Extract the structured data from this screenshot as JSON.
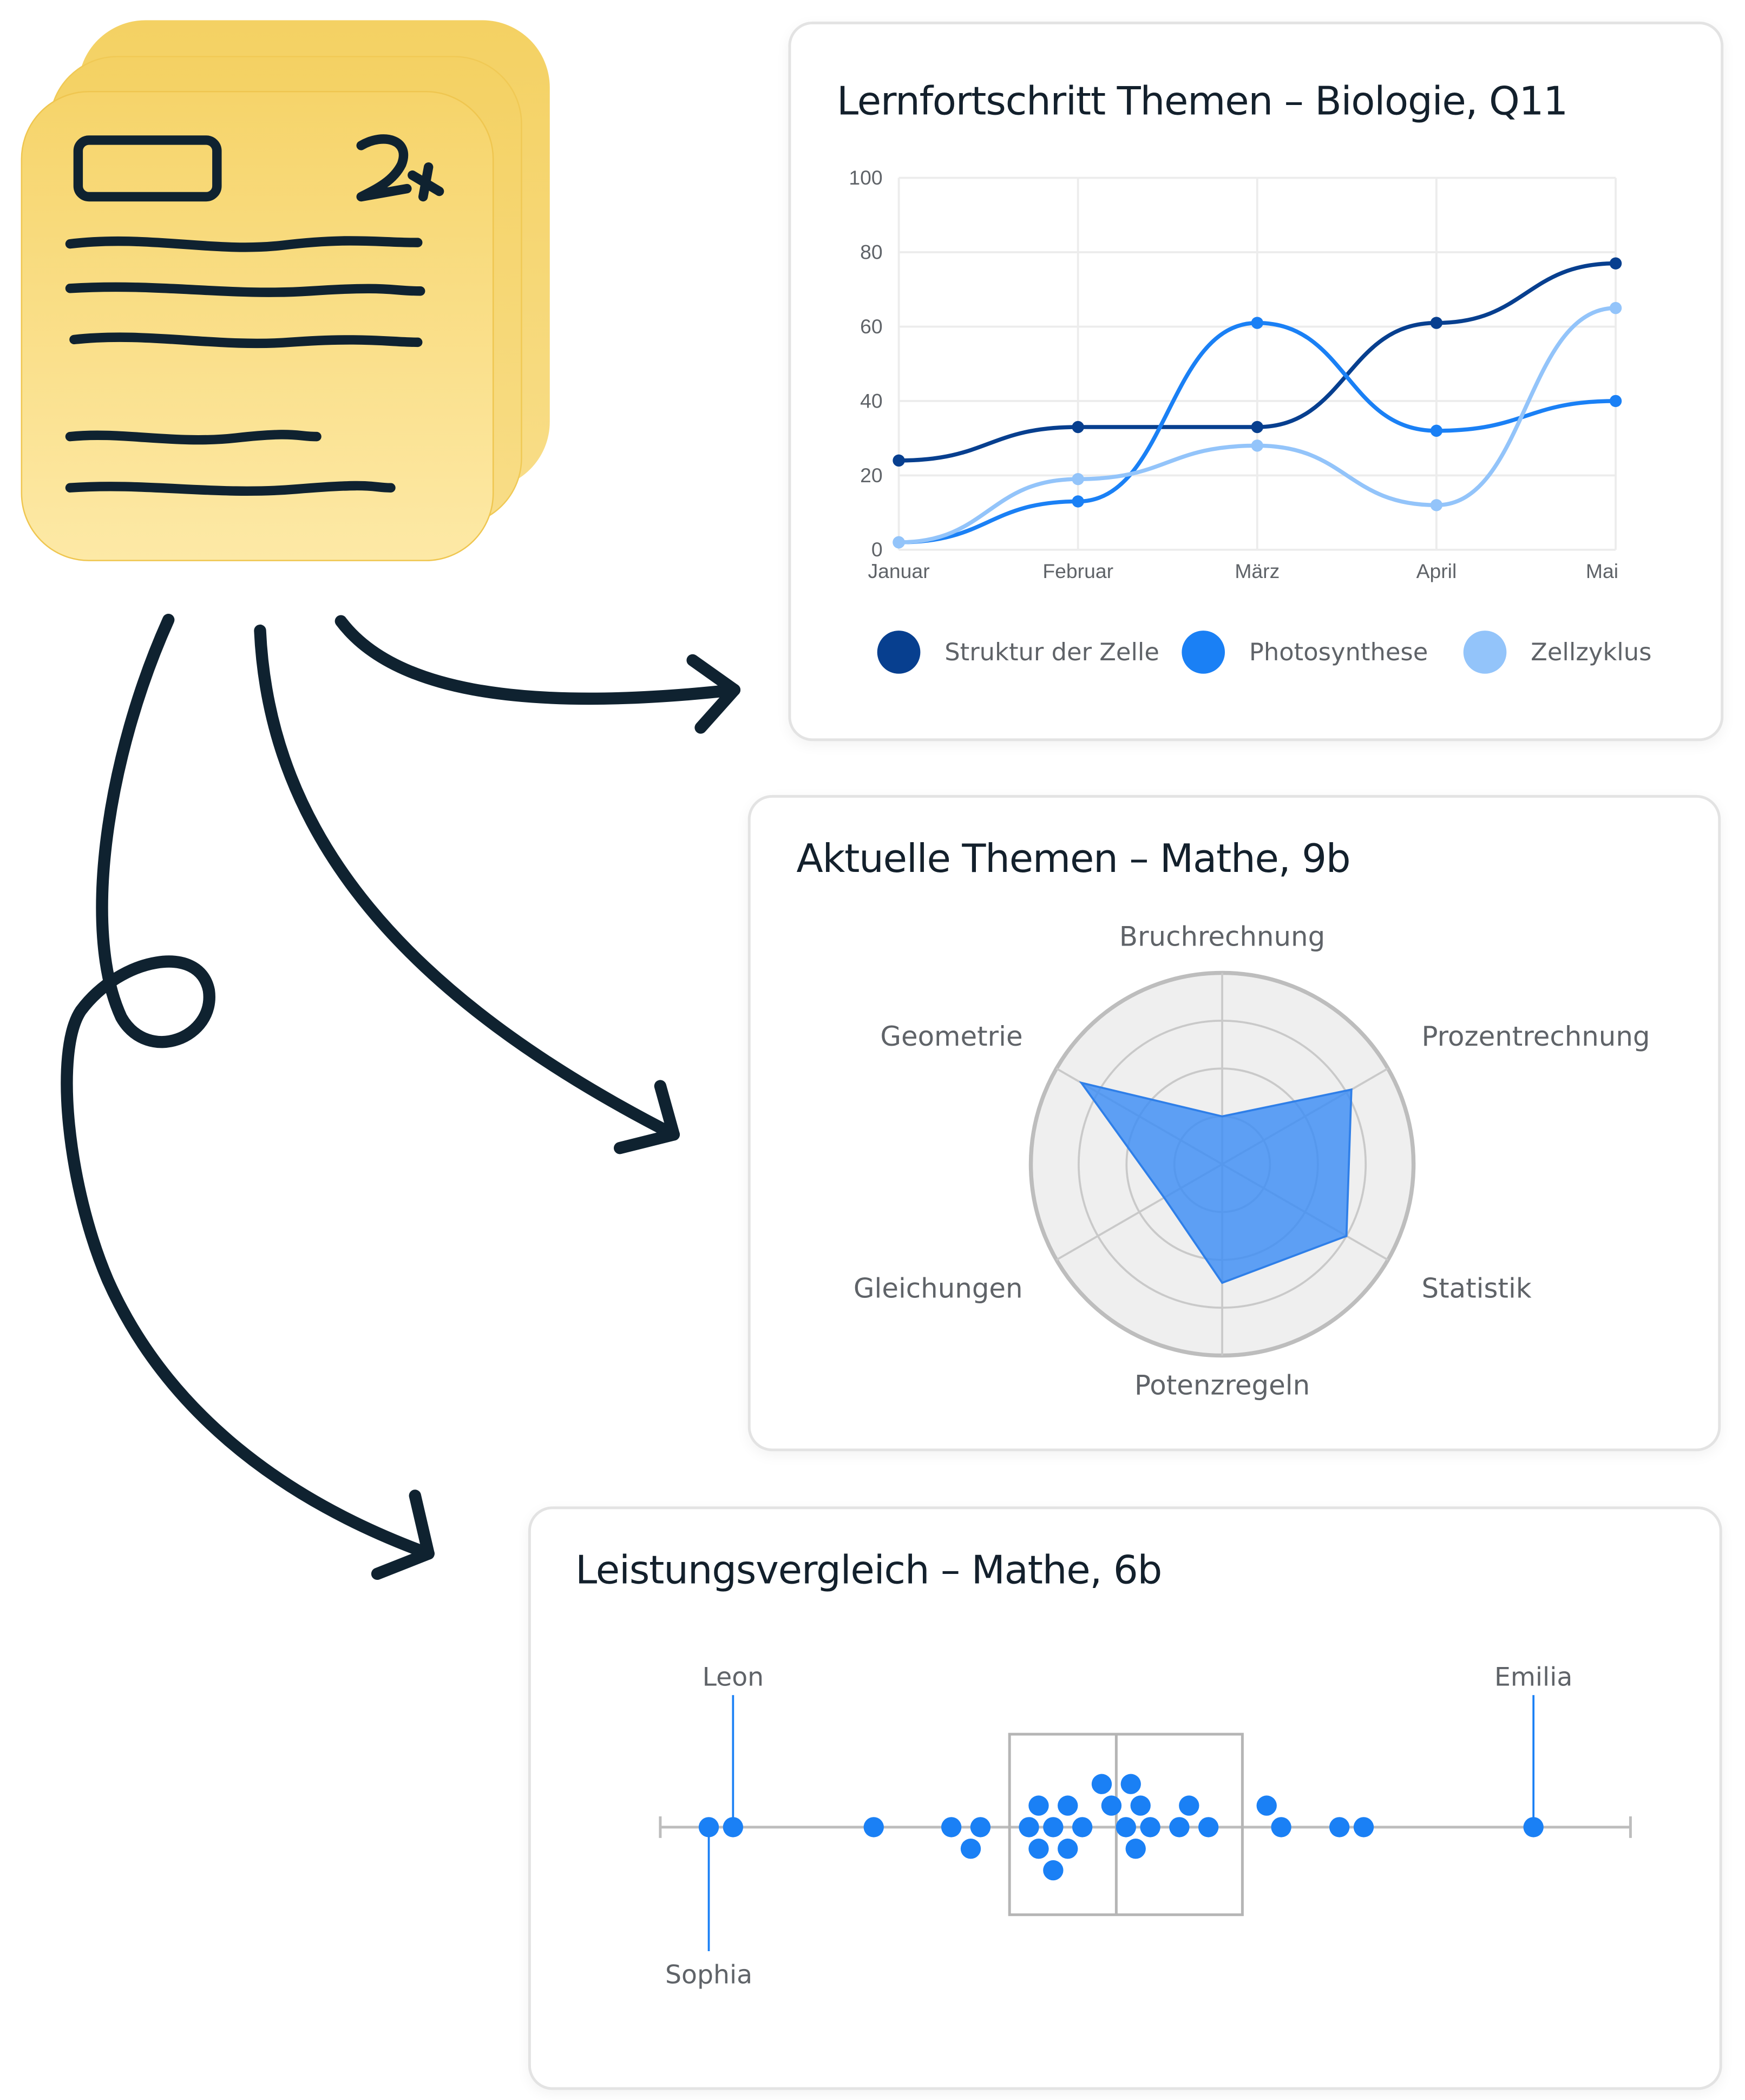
{
  "colors": {
    "ink": "#0f2230",
    "note_top": "#f6d46a",
    "note_bottom": "#fde9a6",
    "dark_blue": "#073f8f",
    "mid_blue": "#1a80f5",
    "light_blue": "#93c4fa",
    "radar_fill": "#3d8ef5",
    "grid": "#e8e8e8",
    "frame": "#bdbdbd"
  },
  "note": {
    "badge_text": "2+",
    "icon": "stacked-notes-icon"
  },
  "cards": {
    "line": {
      "title": "Lernfortschritt Themen – Biologie, Q11"
    },
    "radar": {
      "title": "Aktuelle Themen – Mathe, 9b"
    },
    "strip": {
      "title": "Leistungsvergleich – Mathe, 6b"
    }
  },
  "chart_data": [
    {
      "type": "line",
      "title": "Lernfortschritt Themen – Biologie, Q11",
      "categories": [
        "Januar",
        "Februar",
        "März",
        "April",
        "Mai"
      ],
      "ylim": [
        0,
        100
      ],
      "yticks": [
        0,
        20,
        40,
        60,
        80,
        100
      ],
      "grid": true,
      "legend": "bottom",
      "series": [
        {
          "name": "Struktur der Zelle",
          "color": "#073f8f",
          "values": [
            24,
            33,
            33,
            61,
            77
          ]
        },
        {
          "name": "Photosynthese",
          "color": "#1a80f5",
          "values": [
            2,
            13,
            61,
            32,
            40
          ]
        },
        {
          "name": "Zellzyklus",
          "color": "#93c4fa",
          "values": [
            2,
            19,
            28,
            12,
            65
          ]
        }
      ]
    },
    {
      "type": "radar",
      "title": "Aktuelle Themen – Mathe, 9b",
      "categories": [
        "Bruchrechnung",
        "Prozentrechnung",
        "Statistik",
        "Potenzregeln",
        "Gleichungen",
        "Geometrie"
      ],
      "values": [
        25,
        78,
        75,
        62,
        35,
        85
      ],
      "range": [
        0,
        100
      ]
    },
    {
      "type": "scatter",
      "title": "Leistungsvergleich – Mathe, 6b",
      "subtype": "strip plot with box",
      "xlim": [
        0,
        100
      ],
      "box": {
        "q1": 36,
        "median": 47,
        "q3": 60
      },
      "points": [
        {
          "x": 5,
          "lane": 0
        },
        {
          "x": 7.5,
          "lane": 0
        },
        {
          "x": 22,
          "lane": 0
        },
        {
          "x": 30,
          "lane": 0
        },
        {
          "x": 33,
          "lane": 0
        },
        {
          "x": 32,
          "lane": -1
        },
        {
          "x": 38,
          "lane": 0
        },
        {
          "x": 40.5,
          "lane": 0
        },
        {
          "x": 43.5,
          "lane": 0
        },
        {
          "x": 48,
          "lane": 0
        },
        {
          "x": 50.5,
          "lane": 0
        },
        {
          "x": 53.5,
          "lane": 0
        },
        {
          "x": 56.5,
          "lane": 0
        },
        {
          "x": 39,
          "lane": 1
        },
        {
          "x": 42,
          "lane": 1
        },
        {
          "x": 46.5,
          "lane": 1
        },
        {
          "x": 49.5,
          "lane": 1
        },
        {
          "x": 54.5,
          "lane": 1
        },
        {
          "x": 45.5,
          "lane": 2
        },
        {
          "x": 48.5,
          "lane": 2
        },
        {
          "x": 39,
          "lane": -1
        },
        {
          "x": 42,
          "lane": -1
        },
        {
          "x": 49,
          "lane": -1
        },
        {
          "x": 40.5,
          "lane": -2
        },
        {
          "x": 62.5,
          "lane": 1
        },
        {
          "x": 64,
          "lane": 0
        },
        {
          "x": 70,
          "lane": 0
        },
        {
          "x": 72.5,
          "lane": 0
        },
        {
          "x": 90,
          "lane": 0
        }
      ],
      "annotations": [
        {
          "label": "Leon",
          "x": 7.5,
          "position": "above"
        },
        {
          "label": "Emilia",
          "x": 90,
          "position": "above"
        },
        {
          "label": "Sophia",
          "x": 5,
          "position": "below"
        }
      ]
    }
  ]
}
